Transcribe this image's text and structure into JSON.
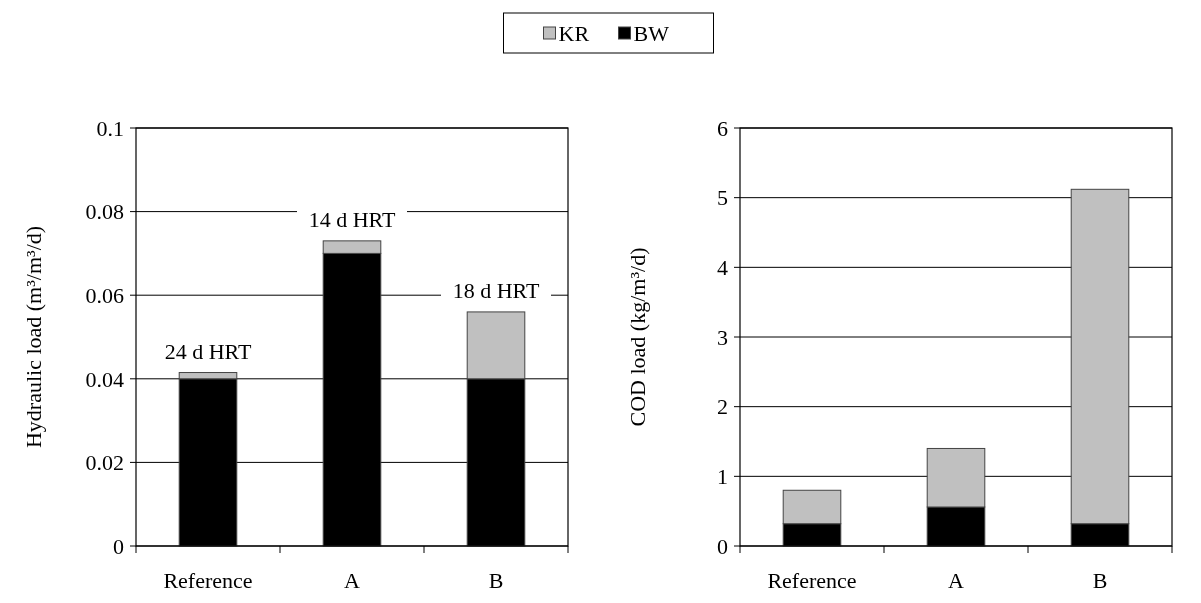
{
  "chart_data": [
    {
      "type": "bar",
      "stacked": true,
      "categories": [
        "Reference",
        "A",
        "B"
      ],
      "ylabel": "Hydraulic load (m³/m³/d)",
      "ylim": [
        0,
        0.1
      ],
      "yticks": [
        0,
        0.02,
        0.04,
        0.06,
        0.08,
        0.1
      ],
      "grid": "y",
      "legend": "top",
      "series": [
        {
          "name": "BW",
          "color": "#000000",
          "values": [
            0.04,
            0.07,
            0.04
          ]
        },
        {
          "name": "KR",
          "color": "#c0c0c0",
          "values": [
            0.0015,
            0.003,
            0.016
          ]
        }
      ],
      "annotations": [
        {
          "text": "24 d HRT",
          "x": "Reference",
          "y": 0.0415
        },
        {
          "text": "14 d HRT",
          "x": "A",
          "y": 0.073
        },
        {
          "text": "18 d HRT",
          "x": "B",
          "y": 0.056
        }
      ]
    },
    {
      "type": "bar",
      "stacked": true,
      "categories": [
        "Reference",
        "A",
        "B"
      ],
      "ylabel": "COD load (kg/m³/d)",
      "ylim": [
        0,
        6
      ],
      "yticks": [
        0,
        1,
        2,
        3,
        4,
        5,
        6
      ],
      "grid": "y",
      "series": [
        {
          "color": "#000000",
          "values": [
            0.32,
            0.56,
            0.32
          ]
        },
        {
          "color": "#c0c0c0",
          "values": [
            0.48,
            0.84,
            4.8
          ]
        }
      ]
    }
  ]
}
